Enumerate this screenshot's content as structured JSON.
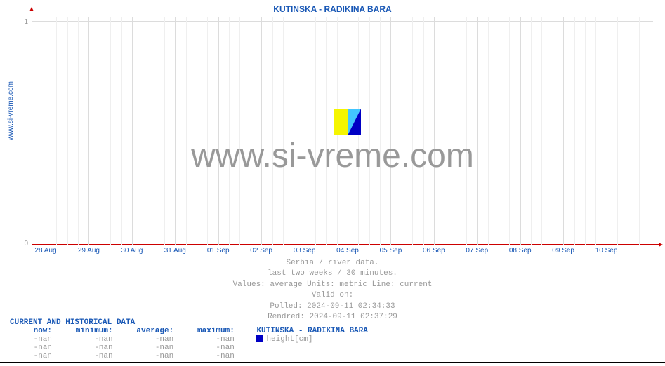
{
  "chart": {
    "title": "KUTINSKA -  RADIKINA BARA",
    "ylabel_rotated": "www.si-vreme.com",
    "watermark_text": "www.si-vreme.com",
    "background_color": "#ffffff",
    "axis_color": "#cc0000",
    "grid_major_color": "#dcdcdc",
    "grid_minor_color": "#efefef",
    "title_color": "#1857b5",
    "xlabel_color": "#1857b5",
    "ylabel_color": "#999999",
    "watermark_color": "#999999",
    "meta_color": "#999999",
    "type": "line",
    "ylim": [
      0,
      1
    ],
    "yticks": [
      {
        "value": 0,
        "label": "0",
        "pos_from_bottom": 0
      },
      {
        "value": 1,
        "label": "1",
        "pos_from_top": 6
      }
    ],
    "x_major": [
      "28 Aug",
      "29 Aug",
      "30 Aug",
      "31 Aug",
      "01 Sep",
      "02 Sep",
      "03 Sep",
      "04 Sep",
      "05 Sep",
      "06 Sep",
      "07 Sep",
      "08 Sep",
      "09 Sep",
      "10 Sep"
    ],
    "x_minors_per_major": 3,
    "series": []
  },
  "meta": {
    "line1": "Serbia / river data.",
    "line2": "last two weeks / 30 minutes.",
    "line3": "Values: average  Units: metric  Line: current",
    "line4": "Valid on:",
    "line5": "Polled: 2024-09-11 02:34:33",
    "line6": "Rendred: 2024-09-11 02:37:29"
  },
  "table": {
    "header": "CURRENT AND HISTORICAL DATA",
    "columns": {
      "now": "now:",
      "min": "minimum:",
      "avg": "average:",
      "max": "maximum:"
    },
    "series_name": "KUTINSKA -  RADIKINA BARA",
    "series_color": "#0000c4",
    "series_unit": "height[cm]",
    "rows": [
      {
        "now": "-nan",
        "min": "-nan",
        "avg": "-nan",
        "max": "-nan"
      },
      {
        "now": "-nan",
        "min": "-nan",
        "avg": "-nan",
        "max": "-nan"
      },
      {
        "now": "-nan",
        "min": "-nan",
        "avg": "-nan",
        "max": "-nan"
      }
    ]
  }
}
